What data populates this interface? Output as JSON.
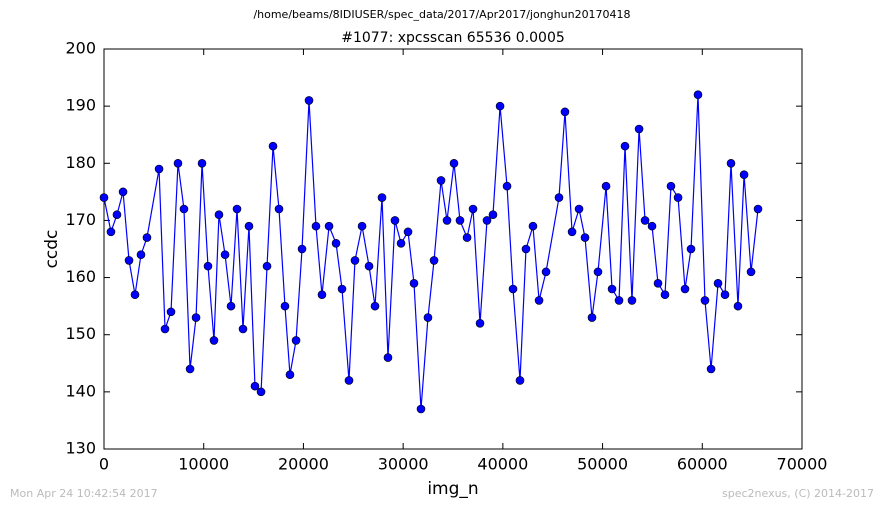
{
  "chart_data": {
    "type": "line",
    "suptitle": "/home/beams/8IDIUSER/spec_data/2017/Apr2017/jonghun20170418",
    "title": "#1077: xpcsscan 65536 0.0005",
    "xlabel": "img_n",
    "ylabel": "ccdc",
    "footer_left": "Mon Apr 24 10:42:54 2017",
    "footer_right": "spec2nexus, (C) 2014-2017",
    "xlim": [
      0,
      70000
    ],
    "xticks": [
      0,
      10000,
      20000,
      30000,
      40000,
      50000,
      60000,
      70000
    ],
    "ylim": [
      130,
      200
    ],
    "yticks": [
      130,
      140,
      150,
      160,
      170,
      180,
      190,
      200
    ],
    "x": [
      0,
      700,
      1300,
      1910,
      2510,
      3110,
      3710,
      4310,
      5520,
      6120,
      6720,
      7420,
      8020,
      8630,
      9230,
      9830,
      10430,
      11030,
      11530,
      12140,
      12740,
      13340,
      13940,
      14540,
      15140,
      15750,
      16350,
      16950,
      17550,
      18150,
      18650,
      19260,
      19860,
      20560,
      21260,
      21860,
      22570,
      23270,
      23870,
      24570,
      25170,
      25880,
      26580,
      27180,
      27880,
      28480,
      29180,
      29790,
      30490,
      31090,
      31790,
      32490,
      33100,
      33800,
      34400,
      35100,
      35700,
      36410,
      37010,
      37710,
      38410,
      39010,
      39720,
      40420,
      41020,
      41720,
      42320,
      43020,
      43630,
      44330,
      45630,
      46230,
      46940,
      47640,
      48240,
      48940,
      49540,
      50350,
      50950,
      51650,
      52250,
      52950,
      53660,
      54260,
      54960,
      55560,
      56260,
      56860,
      57570,
      58270,
      58870,
      59570,
      60270,
      60880,
      61580,
      62280,
      62880,
      63580,
      64190,
      64890,
      65590
    ],
    "series": [
      {
        "color": "#0000ff",
        "values": [
          174,
          168,
          171,
          175,
          163,
          157,
          164,
          167,
          179,
          151,
          154,
          180,
          172,
          144,
          153,
          180,
          162,
          149,
          171,
          164,
          155,
          172,
          151,
          169,
          141,
          140,
          162,
          183,
          172,
          155,
          143,
          149,
          165,
          191,
          169,
          157,
          169,
          166,
          158,
          142,
          163,
          169,
          162,
          155,
          174,
          146,
          170,
          166,
          168,
          159,
          137,
          153,
          163,
          177,
          170,
          180,
          170,
          167,
          172,
          152,
          170,
          171,
          190,
          176,
          158,
          142,
          165,
          169,
          156,
          161,
          174,
          189,
          168,
          172,
          167,
          153,
          161,
          176,
          158,
          156,
          183,
          156,
          186,
          170,
          169,
          159,
          157,
          176,
          174,
          158,
          165,
          192,
          156,
          144,
          159,
          157,
          180,
          155,
          178,
          161,
          172
        ]
      }
    ]
  }
}
